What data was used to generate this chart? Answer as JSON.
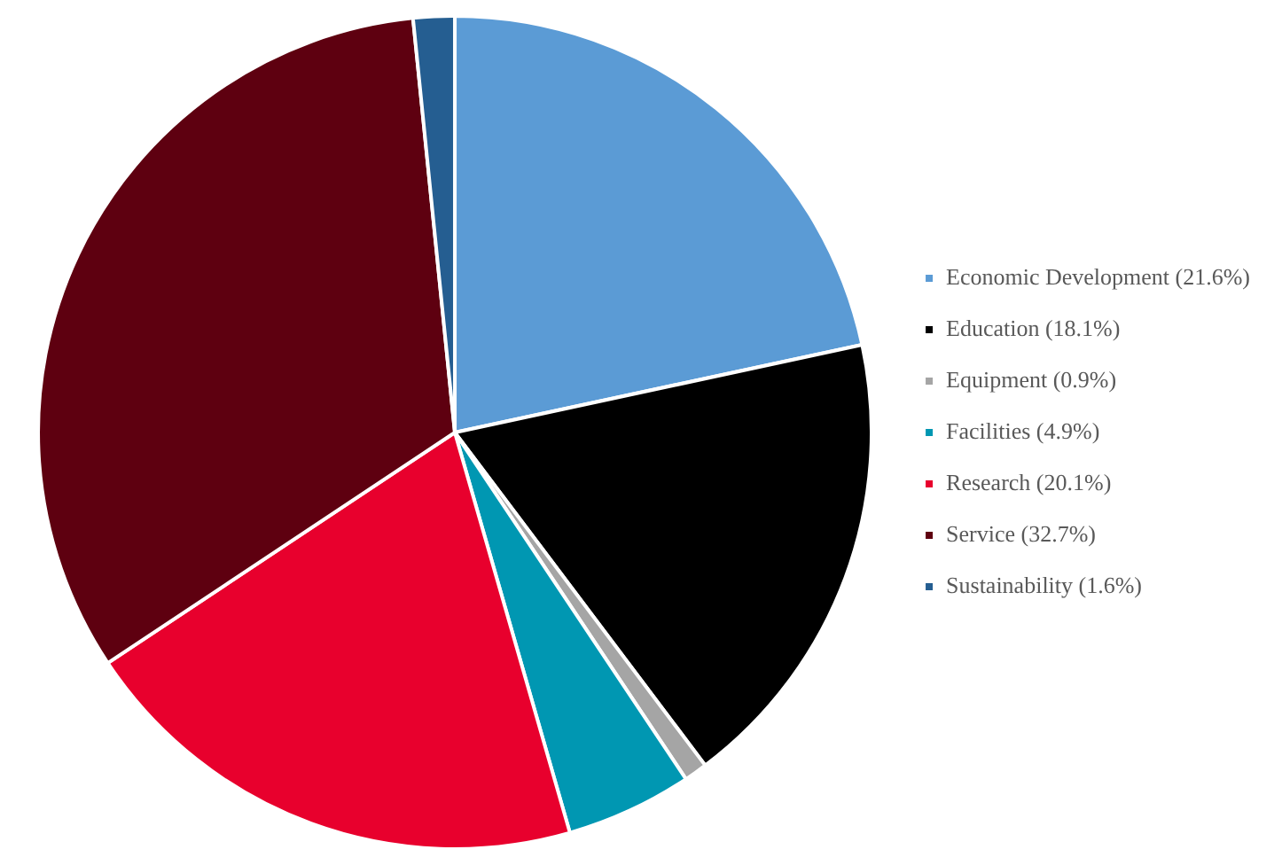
{
  "chart_data": {
    "type": "pie",
    "categories": [
      "Economic Development (21.6%)",
      "Education (18.1%)",
      "Equipment (0.9%)",
      "Facilities (4.9%)",
      "Research (20.1%)",
      "Service (32.7%)",
      "Sustainability (1.6%)"
    ],
    "values": [
      21.6,
      18.1,
      0.9,
      4.9,
      20.1,
      32.7,
      1.6
    ],
    "colors": [
      "#5b9bd5",
      "#000000",
      "#a5a5a5",
      "#0097b2",
      "#e8002d",
      "#5e0010",
      "#255e91"
    ],
    "legend": "right"
  }
}
